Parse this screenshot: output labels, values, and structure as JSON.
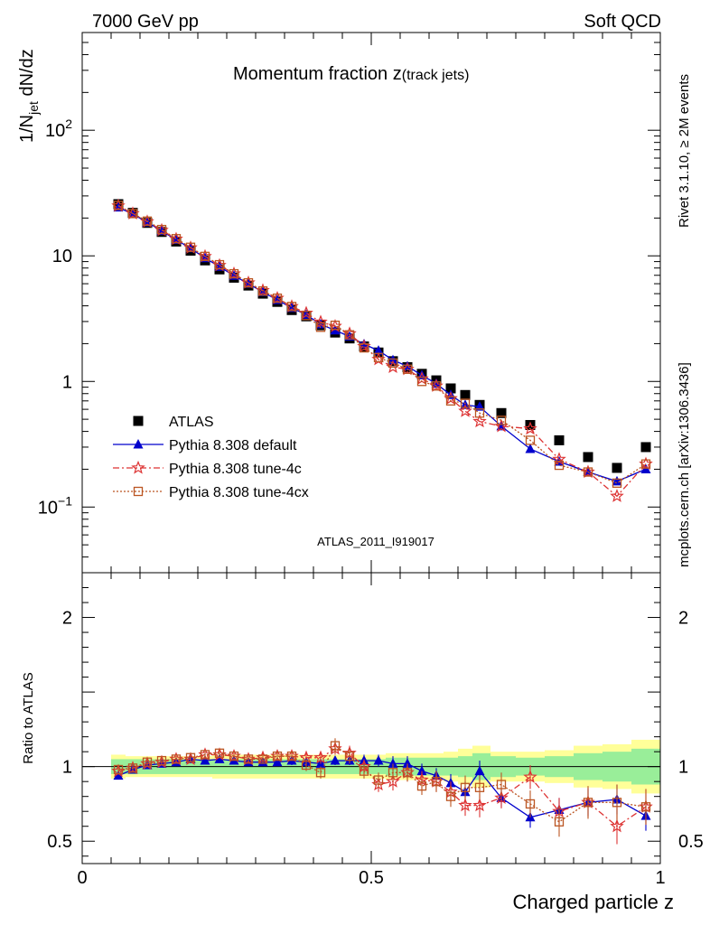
{
  "header": {
    "left": "7000 GeV pp",
    "right": "Soft QCD"
  },
  "side_labels": {
    "rivet": "Rivet 3.1.10, ≥ 2M events",
    "mcplots": "mcplots.cern.ch [arXiv:1306.3436]"
  },
  "chart_data": [
    {
      "type": "scatter",
      "title_main": "Momentum fraction z",
      "title_sub": "(track jets)",
      "analysis_id": "ATLAS_2011_I919017",
      "ylabel": "1/N",
      "ylabel_sub": "jet",
      "ylabel_tail": " dN/dz",
      "yscale": "log",
      "xlim": [
        0,
        1
      ],
      "ylim": [
        0.03,
        600
      ],
      "yticks": [
        {
          "label": "10",
          "sup": "2",
          "value": 100
        },
        {
          "label": "10",
          "sup": "",
          "value": 10
        },
        {
          "label": "1",
          "sup": "",
          "value": 1
        },
        {
          "label": "10",
          "sup": "−1",
          "value": 0.1
        }
      ],
      "legend_placement": "bottom-left",
      "x": [
        0.0625,
        0.0875,
        0.1125,
        0.1375,
        0.1625,
        0.1875,
        0.2125,
        0.2375,
        0.2625,
        0.2875,
        0.3125,
        0.3375,
        0.3625,
        0.3875,
        0.4125,
        0.4375,
        0.4625,
        0.4875,
        0.5125,
        0.5375,
        0.5625,
        0.5875,
        0.6125,
        0.6375,
        0.6625,
        0.6875,
        0.725,
        0.775,
        0.825,
        0.875,
        0.925,
        0.975
      ],
      "series": [
        {
          "name": "ATLAS",
          "marker": "square-filled",
          "color": "#000000",
          "values": [
            25.8,
            22.0,
            18.3,
            15.5,
            13.0,
            11.0,
            9.2,
            7.8,
            6.7,
            5.8,
            5.0,
            4.3,
            3.7,
            3.3,
            2.8,
            2.45,
            2.2,
            1.9,
            1.7,
            1.45,
            1.3,
            1.15,
            1.02,
            0.88,
            0.78,
            0.65,
            0.56,
            0.45,
            0.34,
            0.25,
            0.205,
            0.3
          ]
        },
        {
          "name": "Pythia 8.308 default",
          "marker": "triangle-filled",
          "color": "#0000cc",
          "line": "solid",
          "values": [
            24.3,
            21.5,
            18.5,
            15.8,
            13.4,
            11.5,
            9.6,
            8.2,
            6.95,
            6.0,
            5.15,
            4.45,
            3.85,
            3.4,
            2.85,
            2.55,
            2.28,
            1.98,
            1.76,
            1.48,
            1.32,
            1.12,
            0.96,
            0.78,
            0.65,
            0.63,
            0.44,
            0.29,
            0.23,
            0.19,
            0.16,
            0.2
          ]
        },
        {
          "name": "Pythia 8.308 tune-4c",
          "marker": "star-open",
          "color": "#dd3333",
          "line": "dashdot",
          "values": [
            25.0,
            21.7,
            18.7,
            16.0,
            13.6,
            11.6,
            9.9,
            8.4,
            7.2,
            6.1,
            5.3,
            4.6,
            3.95,
            3.5,
            2.97,
            2.75,
            2.4,
            1.9,
            1.5,
            1.3,
            1.25,
            1.05,
            0.92,
            0.73,
            0.58,
            0.48,
            0.44,
            0.42,
            0.24,
            0.19,
            0.122,
            0.22
          ]
        },
        {
          "name": "Pythia 8.308 tune-4cx",
          "marker": "square-open",
          "color": "#bb5522",
          "line": "dotted",
          "values": [
            25.2,
            21.7,
            18.9,
            16.2,
            13.7,
            11.7,
            9.9,
            8.5,
            7.2,
            6.1,
            5.25,
            4.6,
            3.95,
            3.35,
            2.7,
            2.8,
            2.35,
            1.85,
            1.55,
            1.4,
            1.25,
            1.0,
            0.92,
            0.7,
            0.67,
            0.56,
            0.49,
            0.34,
            0.215,
            0.19,
            0.155,
            0.22
          ]
        }
      ]
    },
    {
      "type": "scatter",
      "ylabel": "Ratio to ATLAS",
      "xlabel": "Charged particle z",
      "xlim": [
        0,
        1
      ],
      "ylim": [
        0.35,
        2.3
      ],
      "xticks": [
        {
          "label": "0",
          "value": 0
        },
        {
          "label": "0.5",
          "value": 0.5
        },
        {
          "label": "1",
          "value": 1
        }
      ],
      "yticks": [
        {
          "label": "2",
          "value": 2
        },
        {
          "label": "1",
          "value": 1
        },
        {
          "label": "0.5",
          "value": 0.5
        }
      ],
      "band_inner": [
        0.05,
        0.05,
        0.05,
        0.05,
        0.05,
        0.05,
        0.05,
        0.05,
        0.05,
        0.05,
        0.05,
        0.05,
        0.05,
        0.05,
        0.05,
        0.05,
        0.05,
        0.05,
        0.05,
        0.06,
        0.06,
        0.06,
        0.06,
        0.06,
        0.07,
        0.09,
        0.07,
        0.06,
        0.07,
        0.09,
        0.1,
        0.12
      ],
      "band_outer": [
        0.08,
        0.07,
        0.07,
        0.07,
        0.07,
        0.07,
        0.07,
        0.08,
        0.08,
        0.08,
        0.08,
        0.08,
        0.08,
        0.08,
        0.08,
        0.08,
        0.08,
        0.08,
        0.08,
        0.09,
        0.09,
        0.09,
        0.09,
        0.1,
        0.12,
        0.14,
        0.1,
        0.1,
        0.11,
        0.14,
        0.15,
        0.18
      ],
      "series": [
        {
          "name": "Pythia 8.308 default",
          "marker": "triangle-filled",
          "color": "#0000cc",
          "line": "solid",
          "values": [
            0.94,
            0.98,
            1.01,
            1.02,
            1.03,
            1.05,
            1.04,
            1.05,
            1.04,
            1.03,
            1.03,
            1.03,
            1.04,
            1.03,
            1.02,
            1.04,
            1.04,
            1.04,
            1.04,
            1.02,
            1.02,
            0.97,
            0.94,
            0.89,
            0.83,
            0.97,
            0.79,
            0.66,
            0.71,
            0.76,
            0.78,
            0.67
          ],
          "err": [
            0.02,
            0.02,
            0.02,
            0.02,
            0.02,
            0.02,
            0.02,
            0.02,
            0.02,
            0.02,
            0.02,
            0.02,
            0.03,
            0.03,
            0.03,
            0.03,
            0.03,
            0.04,
            0.04,
            0.05,
            0.05,
            0.05,
            0.05,
            0.06,
            0.07,
            0.07,
            0.06,
            0.07,
            0.08,
            0.09,
            0.1,
            0.1
          ]
        },
        {
          "name": "Pythia 8.308 tune-4c",
          "marker": "star-open",
          "color": "#dd3333",
          "line": "dashdot",
          "values": [
            0.97,
            0.99,
            1.02,
            1.03,
            1.05,
            1.05,
            1.08,
            1.08,
            1.07,
            1.05,
            1.06,
            1.07,
            1.07,
            1.06,
            1.06,
            1.12,
            1.09,
            1.0,
            0.88,
            0.9,
            0.96,
            0.91,
            0.9,
            0.83,
            0.74,
            0.74,
            0.79,
            0.93,
            0.7,
            0.76,
            0.6,
            0.73
          ],
          "err": [
            0.02,
            0.02,
            0.02,
            0.02,
            0.02,
            0.02,
            0.02,
            0.02,
            0.02,
            0.02,
            0.03,
            0.03,
            0.03,
            0.03,
            0.04,
            0.04,
            0.05,
            0.05,
            0.05,
            0.06,
            0.06,
            0.06,
            0.07,
            0.07,
            0.07,
            0.08,
            0.07,
            0.08,
            0.09,
            0.1,
            0.12,
            0.12
          ]
        },
        {
          "name": "Pythia 8.308 tune-4cx",
          "marker": "square-open",
          "color": "#bb5522",
          "line": "dotted",
          "values": [
            0.98,
            0.99,
            1.03,
            1.04,
            1.05,
            1.06,
            1.08,
            1.09,
            1.07,
            1.05,
            1.05,
            1.07,
            1.07,
            1.01,
            0.96,
            1.14,
            1.07,
            0.97,
            0.91,
            0.96,
            0.96,
            0.87,
            0.9,
            0.8,
            0.86,
            0.86,
            0.88,
            0.75,
            0.63,
            0.76,
            0.76,
            0.73
          ],
          "err": [
            0.02,
            0.02,
            0.02,
            0.02,
            0.02,
            0.02,
            0.02,
            0.02,
            0.02,
            0.02,
            0.03,
            0.03,
            0.03,
            0.04,
            0.04,
            0.05,
            0.05,
            0.05,
            0.05,
            0.06,
            0.06,
            0.06,
            0.07,
            0.07,
            0.08,
            0.08,
            0.08,
            0.09,
            0.1,
            0.11,
            0.12,
            0.12
          ]
        }
      ]
    }
  ],
  "colors": {
    "band_inner": "#99ee99",
    "band_outer": "#ffff99",
    "analysis_id": "#999999",
    "side_text": "#888888"
  }
}
